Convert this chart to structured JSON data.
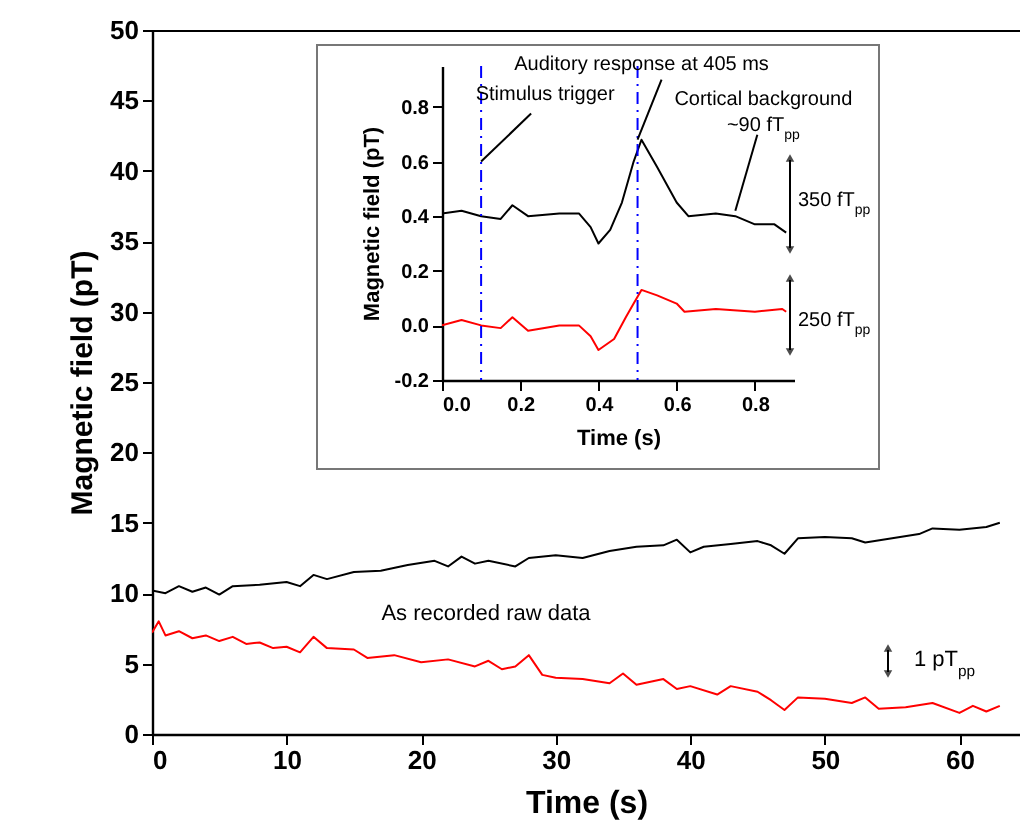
{
  "chart_data": [
    {
      "type": "line",
      "xlabel": "Time (s)",
      "ylabel": "Magnetic field (pT)",
      "xlim": [
        0,
        64.5
      ],
      "xticks": [
        0,
        10,
        20,
        30,
        40,
        50,
        60
      ],
      "ylim": [
        0,
        50
      ],
      "yticks": [
        0,
        5,
        10,
        15,
        20,
        25,
        30,
        35,
        40,
        45,
        50
      ],
      "series": [
        {
          "color": "#000000",
          "x": [
            0,
            1,
            2,
            3,
            4,
            5,
            6,
            8,
            10,
            11,
            12,
            13,
            15,
            17,
            19,
            21,
            22,
            23,
            24,
            25,
            27,
            28,
            30,
            32,
            34,
            36,
            38,
            39,
            40,
            41,
            43,
            45,
            46,
            47,
            48,
            50,
            52,
            53,
            55,
            57,
            58,
            60,
            62,
            63
          ],
          "values": [
            10.2,
            10.0,
            10.5,
            10.1,
            10.4,
            9.9,
            10.5,
            10.6,
            10.8,
            10.5,
            11.3,
            11.0,
            11.5,
            11.6,
            12.0,
            12.3,
            11.9,
            12.6,
            12.1,
            12.3,
            11.9,
            12.5,
            12.7,
            12.5,
            13.0,
            13.3,
            13.4,
            13.8,
            12.9,
            13.3,
            13.5,
            13.7,
            13.4,
            12.8,
            13.9,
            14.0,
            13.9,
            13.6,
            13.9,
            14.2,
            14.6,
            14.5,
            14.7,
            15.0
          ]
        },
        {
          "color": "#ff0000",
          "x": [
            0,
            0.5,
            1,
            2,
            3,
            4,
            5,
            6,
            7,
            8,
            9,
            10,
            11,
            12,
            13,
            15,
            16,
            18,
            20,
            22,
            24,
            25,
            26,
            27,
            28,
            29,
            30,
            32,
            34,
            35,
            36,
            38,
            39,
            40,
            42,
            43,
            45,
            46,
            47,
            48,
            50,
            52,
            53,
            54,
            56,
            58,
            60,
            61,
            62,
            63
          ],
          "values": [
            7.2,
            8.0,
            7.0,
            7.3,
            6.8,
            7.0,
            6.6,
            6.9,
            6.4,
            6.5,
            6.1,
            6.2,
            5.8,
            6.9,
            6.1,
            6.0,
            5.4,
            5.6,
            5.1,
            5.3,
            4.8,
            5.2,
            4.6,
            4.8,
            5.6,
            4.2,
            4.0,
            3.9,
            3.6,
            4.3,
            3.5,
            3.9,
            3.2,
            3.4,
            2.8,
            3.4,
            3.0,
            2.4,
            1.7,
            2.6,
            2.5,
            2.2,
            2.6,
            1.8,
            1.9,
            2.2,
            1.5,
            2.0,
            1.6,
            2.0
          ]
        }
      ],
      "annotations": [
        "As recorded raw data",
        "1 pT$_{pp}$"
      ]
    },
    {
      "type": "line",
      "xlabel": "Time (s)",
      "ylabel": "Magnetic field (pT)",
      "xlim": [
        0,
        0.9
      ],
      "xticks": [
        {
          "value": 0,
          "label": "0.0"
        },
        {
          "value": 0.2,
          "label": "0.2"
        },
        {
          "value": 0.4,
          "label": "0.4"
        },
        {
          "value": 0.6,
          "label": "0.6"
        },
        {
          "value": 0.8,
          "label": "0.8"
        }
      ],
      "ylim": [
        -0.2,
        0.95
      ],
      "yticks": [
        {
          "value": -0.2,
          "label": "-0.2"
        },
        {
          "value": 0,
          "label": "0.0"
        },
        {
          "value": 0.2,
          "label": "0.2"
        },
        {
          "value": 0.4,
          "label": "0.4"
        },
        {
          "value": 0.6,
          "label": "0.6"
        },
        {
          "value": 0.8,
          "label": "0.8"
        }
      ],
      "series": [
        {
          "color": "#000000",
          "x": [
            0,
            0.05,
            0.1,
            0.15,
            0.18,
            0.22,
            0.3,
            0.35,
            0.38,
            0.4,
            0.43,
            0.46,
            0.49,
            0.51,
            0.55,
            0.6,
            0.63,
            0.7,
            0.75,
            0.8,
            0.85,
            0.88
          ],
          "values": [
            0.41,
            0.42,
            0.4,
            0.39,
            0.44,
            0.4,
            0.41,
            0.41,
            0.36,
            0.3,
            0.35,
            0.45,
            0.6,
            0.68,
            0.58,
            0.45,
            0.4,
            0.41,
            0.4,
            0.37,
            0.37,
            0.34
          ]
        },
        {
          "color": "#ff0000",
          "x": [
            0,
            0.05,
            0.1,
            0.15,
            0.18,
            0.22,
            0.3,
            0.35,
            0.38,
            0.4,
            0.44,
            0.47,
            0.49,
            0.51,
            0.55,
            0.6,
            0.62,
            0.7,
            0.8,
            0.87,
            0.88
          ],
          "values": [
            0.0,
            0.02,
            0.0,
            -0.01,
            0.03,
            -0.02,
            0.0,
            0.0,
            -0.04,
            -0.09,
            -0.05,
            0.03,
            0.08,
            0.13,
            0.11,
            0.08,
            0.05,
            0.06,
            0.05,
            0.06,
            0.05
          ]
        }
      ],
      "ref_lines": [
        {
          "axis": "x",
          "value": 0.1,
          "color": "#0000ff",
          "line_style": "dashed"
        },
        {
          "axis": "x",
          "value": 0.5,
          "color": "#0000ff",
          "line_style": "dashed"
        }
      ],
      "annotations": [
        {
          "text": "Stimulus trigger",
          "x": 0.1,
          "y": 0.6
        },
        {
          "text": "Auditory response at 405 ms",
          "x": 0.5,
          "y": 0.68
        },
        {
          "text": "Cortical background\n~90 fT$_{pp}$",
          "x": 0.75,
          "y": 0.42
        },
        "350 fT$_{pp}$",
        "250 fT$_{pp}$"
      ]
    }
  ]
}
